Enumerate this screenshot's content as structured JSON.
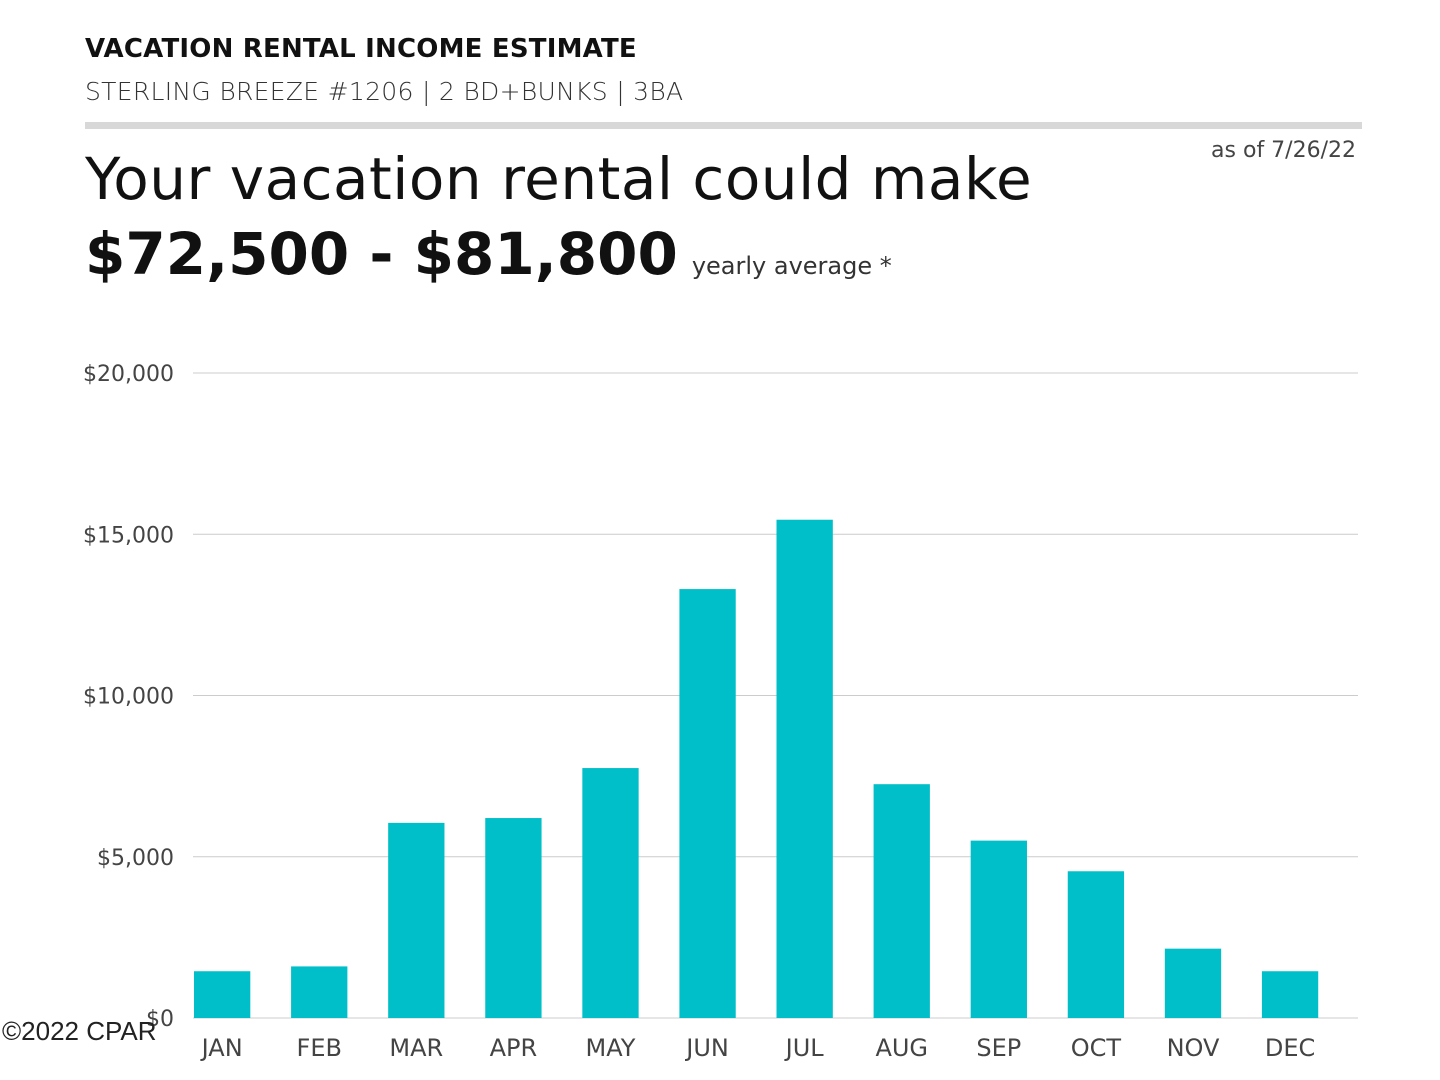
{
  "header": {
    "title": "VACATION RENTAL INCOME ESTIMATE",
    "subtitle": "STERLING BREEZE #1206 | 2 BD+BUNKS | 3BA"
  },
  "as_of": "as of 7/26/22",
  "headline": "Your vacation rental could make",
  "range": "$72,500 - $81,800",
  "range_note": "yearly average *",
  "copyright": "©2022 CPAR",
  "colors": {
    "bar": "#00bfc8",
    "grid": "#cccccc"
  },
  "chart_data": {
    "type": "bar",
    "categories": [
      "JAN",
      "FEB",
      "MAR",
      "APR",
      "MAY",
      "JUN",
      "JUL",
      "AUG",
      "SEP",
      "OCT",
      "NOV",
      "DEC"
    ],
    "values": [
      1450,
      1600,
      6050,
      6200,
      7750,
      13300,
      15450,
      7250,
      5500,
      4550,
      2150,
      1450
    ],
    "ylim": [
      0,
      20000
    ],
    "yticks": [
      0,
      5000,
      10000,
      15000,
      20000
    ],
    "ytick_labels": [
      "$0",
      "$5,000",
      "$10,000",
      "$15,000",
      "$20,000"
    ],
    "grid": true,
    "title": "",
    "xlabel": "",
    "ylabel": ""
  }
}
